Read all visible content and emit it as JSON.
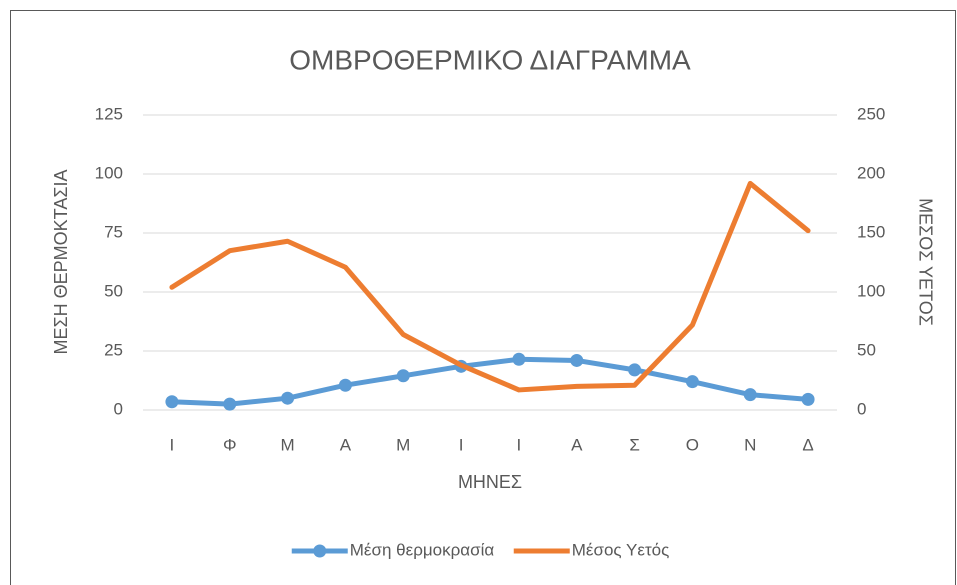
{
  "chart_data": {
    "type": "line",
    "title": "ΟΜΒΡΟΘΕΡΜΙΚΟ ΔΙΑΓΡΑΜΜΑ",
    "x_label": "ΜΗΝΕΣ",
    "y_label": "ΜΕΣΗ ΘΕΡΜΟΚΤΑΣΙΑ",
    "y2_label": "ΜΕΣΟΣ ΥΕΤΟΣ",
    "categories": [
      "Ι",
      "Φ",
      "Μ",
      "Α",
      "Μ",
      "Ι",
      "Ι",
      "Α",
      "Σ",
      "Ο",
      "Ν",
      "Δ"
    ],
    "series": [
      {
        "name": "Μέση θερμοκρασία",
        "color": "#5b9bd5",
        "markers": true,
        "values": [
          3.5,
          2.5,
          5,
          10.5,
          14.5,
          18.5,
          21.5,
          21,
          17,
          12,
          6.5,
          4.5
        ]
      },
      {
        "name": "Μέσος Υετός",
        "color": "#ed7d31",
        "axis": "y2",
        "markers": false,
        "values": [
          104,
          135,
          143,
          121,
          64,
          38,
          17,
          20,
          21,
          72,
          192,
          152
        ]
      }
    ],
    "ylim": [
      0,
      125
    ],
    "yticks": [
      0,
      25,
      50,
      75,
      100,
      125
    ],
    "y2lim": [
      0,
      250
    ],
    "y2ticks": [
      0,
      50,
      100,
      150,
      200,
      250
    ],
    "grid": true,
    "legend": "bottom"
  }
}
